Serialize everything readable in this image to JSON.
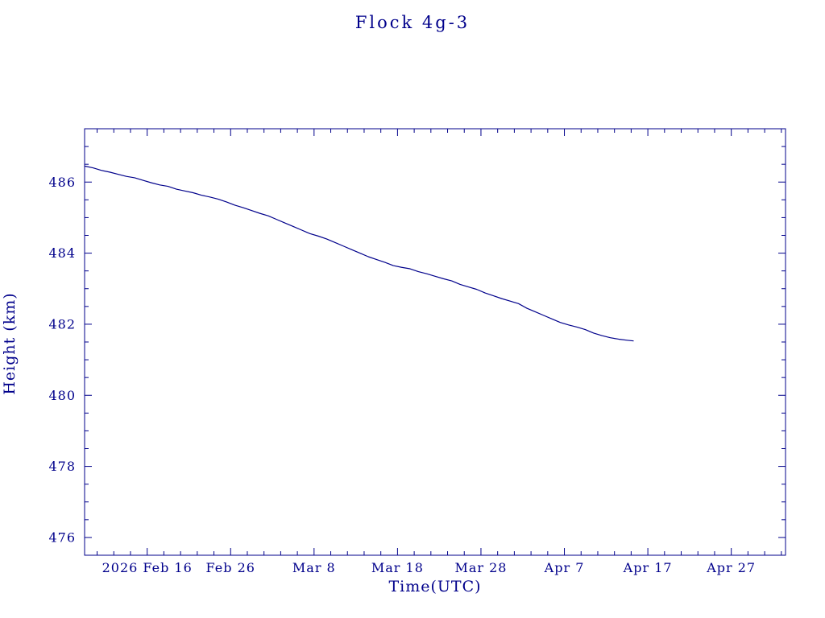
{
  "chart_data": {
    "type": "line",
    "title": "Flock 4g-3",
    "xlabel": "Time(UTC)",
    "ylabel": "Height (km)",
    "color": "#00008b",
    "background": "#ffffff",
    "grid": false,
    "legend": "none",
    "x_domain": [
      0,
      84
    ],
    "x_domain_note": "days, 0 = 2026 Feb 8.5, 84 = 2026 May 3",
    "y_domain": [
      475.5,
      487.5
    ],
    "x_minor_step": 2,
    "y_minor_step": 0.5,
    "x_ticks": [
      {
        "pos": 7.5,
        "label": "2026 Feb 16"
      },
      {
        "pos": 17.5,
        "label": "Feb 26"
      },
      {
        "pos": 27.5,
        "label": "Mar  8"
      },
      {
        "pos": 37.5,
        "label": "Mar 18"
      },
      {
        "pos": 47.5,
        "label": "Mar 28"
      },
      {
        "pos": 57.5,
        "label": "Apr  7"
      },
      {
        "pos": 67.5,
        "label": "Apr 17"
      },
      {
        "pos": 77.5,
        "label": "Apr 27"
      }
    ],
    "y_ticks": [
      {
        "value": 476,
        "label": "476"
      },
      {
        "value": 478,
        "label": "478"
      },
      {
        "value": 480,
        "label": "480"
      },
      {
        "value": 482,
        "label": "482"
      },
      {
        "value": 484,
        "label": "484"
      },
      {
        "value": 486,
        "label": "486"
      }
    ],
    "series": [
      {
        "name": "Flock 4g-3 height",
        "points": [
          [
            0,
            486.45
          ],
          [
            1,
            486.4
          ],
          [
            2,
            486.33
          ],
          [
            3,
            486.28
          ],
          [
            4,
            486.22
          ],
          [
            5,
            486.16
          ],
          [
            6,
            486.12
          ],
          [
            7,
            486.05
          ],
          [
            8,
            485.98
          ],
          [
            9,
            485.92
          ],
          [
            10,
            485.88
          ],
          [
            11,
            485.8
          ],
          [
            12,
            485.75
          ],
          [
            13,
            485.7
          ],
          [
            14,
            485.63
          ],
          [
            15,
            485.58
          ],
          [
            16,
            485.52
          ],
          [
            17,
            485.44
          ],
          [
            18,
            485.35
          ],
          [
            19,
            485.28
          ],
          [
            20,
            485.2
          ],
          [
            21,
            485.12
          ],
          [
            22,
            485.05
          ],
          [
            23,
            484.95
          ],
          [
            24,
            484.85
          ],
          [
            25,
            484.75
          ],
          [
            26,
            484.65
          ],
          [
            27,
            484.55
          ],
          [
            28,
            484.48
          ],
          [
            29,
            484.4
          ],
          [
            30,
            484.3
          ],
          [
            31,
            484.2
          ],
          [
            32,
            484.1
          ],
          [
            33,
            484.0
          ],
          [
            34,
            483.9
          ],
          [
            35,
            483.82
          ],
          [
            36,
            483.74
          ],
          [
            37,
            483.65
          ],
          [
            38,
            483.6
          ],
          [
            39,
            483.56
          ],
          [
            40,
            483.48
          ],
          [
            41,
            483.42
          ],
          [
            42,
            483.35
          ],
          [
            43,
            483.28
          ],
          [
            44,
            483.22
          ],
          [
            45,
            483.12
          ],
          [
            46,
            483.05
          ],
          [
            47,
            482.98
          ],
          [
            48,
            482.88
          ],
          [
            49,
            482.8
          ],
          [
            50,
            482.72
          ],
          [
            51,
            482.65
          ],
          [
            52,
            482.58
          ],
          [
            53,
            482.45
          ],
          [
            54,
            482.35
          ],
          [
            55,
            482.25
          ],
          [
            56,
            482.15
          ],
          [
            57,
            482.05
          ],
          [
            58,
            481.98
          ],
          [
            59,
            481.92
          ],
          [
            60,
            481.85
          ],
          [
            61,
            481.75
          ],
          [
            62,
            481.68
          ],
          [
            63,
            481.62
          ],
          [
            64,
            481.58
          ],
          [
            65,
            481.55
          ],
          [
            65.8,
            481.53
          ]
        ]
      }
    ]
  }
}
